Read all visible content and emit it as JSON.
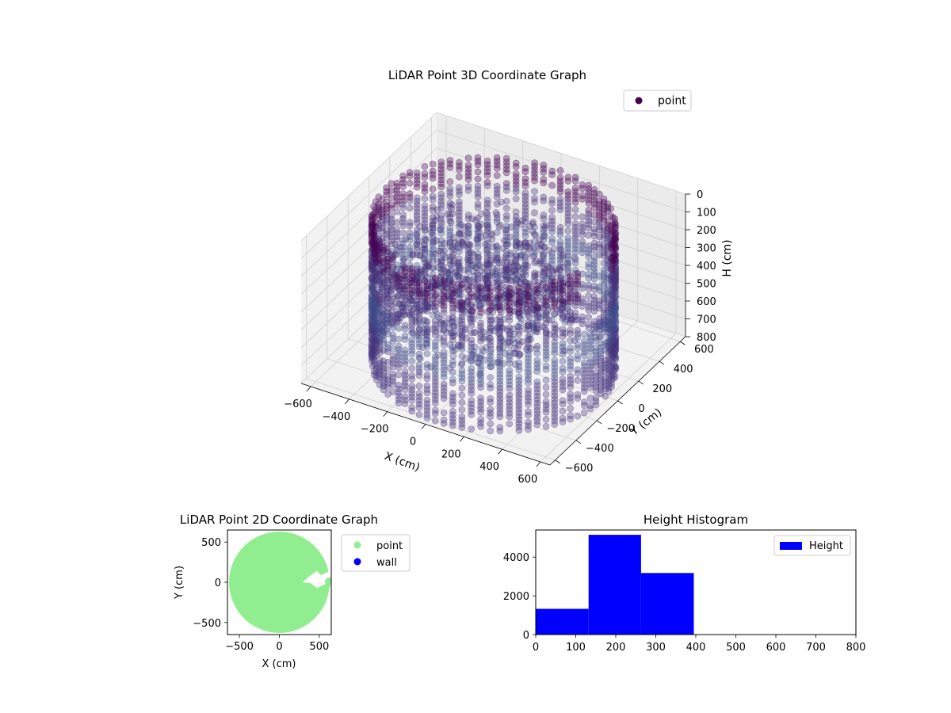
{
  "chart_data": [
    {
      "type": "scatter",
      "projection": "3d",
      "title": "LiDAR Point 3D Coordinate Graph",
      "xlabel": "X (cm)",
      "ylabel": "Y (cm)",
      "zlabel": "H (cm)",
      "xlim": [
        -650,
        650
      ],
      "ylim": [
        -650,
        650
      ],
      "zlim": [
        800,
        0
      ],
      "xticks": [
        -600,
        -400,
        -200,
        0,
        200,
        400,
        600
      ],
      "yticks": [
        -600,
        -400,
        -200,
        0,
        200,
        400,
        600
      ],
      "zticks": [
        0,
        100,
        200,
        300,
        400,
        500,
        600,
        700,
        800
      ],
      "legend": {
        "placement": "top-right",
        "entries": [
          {
            "label": "point",
            "color": "#440154"
          }
        ]
      },
      "grid": true,
      "colormap": "viridis",
      "description_of_points": "ring-shaped wall of points (radius about 600 cm) from roughly 50 to 850 cm height, with an opening near +X, plus clutter inside"
    },
    {
      "type": "scatter",
      "title": "LiDAR Point 2D Coordinate Graph",
      "xlabel": "X (cm)",
      "ylabel": "Y (cm)",
      "xlim": [
        -650,
        650
      ],
      "ylim": [
        -650,
        650
      ],
      "xticks": [
        -500,
        0,
        500
      ],
      "yticks": [
        500,
        0,
        -500
      ],
      "legend": {
        "placement": "outside-right",
        "entries": [
          {
            "label": "point",
            "color": "#90ee90"
          },
          {
            "label": "wall",
            "color": "#0000ff"
          }
        ]
      },
      "series": [
        {
          "name": "point",
          "color": "#90ee90",
          "shape": "filled disc, radius about 650 cm centred near (0,0), with a notch opening near +X"
        },
        {
          "name": "wall",
          "color": "#0000ff",
          "values": []
        }
      ]
    },
    {
      "type": "bar",
      "subtype": "histogram",
      "title": "Height Histogram",
      "xlim": [
        0,
        800
      ],
      "ylim": [
        0,
        5400
      ],
      "xticks": [
        0,
        100,
        200,
        300,
        400,
        500,
        600,
        700,
        800
      ],
      "yticks": [
        0,
        2000,
        4000
      ],
      "legend": {
        "placement": "top-right",
        "entries": [
          {
            "label": "Height",
            "color": "#0000ff"
          }
        ]
      },
      "bins": [
        {
          "x0": 0,
          "x1": 132,
          "count": 1330
        },
        {
          "x0": 132,
          "x1": 263,
          "count": 5150
        },
        {
          "x0": 263,
          "x1": 395,
          "count": 3180
        }
      ],
      "color": "#0000ff"
    }
  ]
}
